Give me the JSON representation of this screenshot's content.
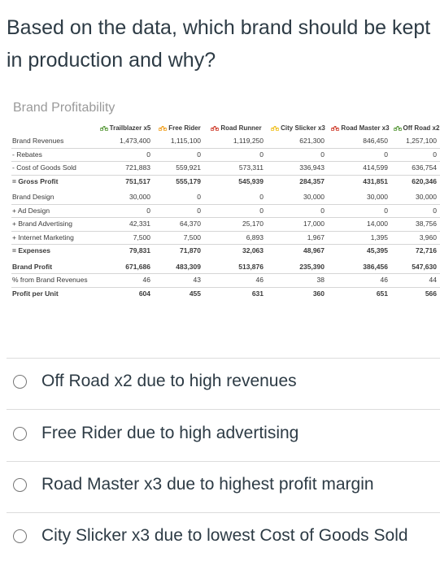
{
  "question": "Based on the data, which brand should be kept in production and why?",
  "table": {
    "title": "Brand Profitability",
    "brands": [
      "Trailblazer x5",
      "Free Rider",
      "Road Runner",
      "City Slicker x3",
      "Road Master x3",
      "Off Road x2"
    ],
    "brand_icon_colors": [
      "#5a9a3c",
      "#f0a020",
      "#d04030",
      "#f0c020",
      "#d04030",
      "#5a9a3c"
    ],
    "rows": [
      {
        "label": "Brand Revenues",
        "values": [
          "1,473,400",
          "1,115,100",
          "1,119,250",
          "621,300",
          "846,450",
          "1,257,100"
        ]
      },
      {
        "label": "- Rebates",
        "values": [
          "0",
          "0",
          "0",
          "0",
          "0",
          "0"
        ]
      },
      {
        "label": "- Cost of Goods Sold",
        "values": [
          "721,883",
          "559,921",
          "573,311",
          "336,943",
          "414,599",
          "636,754"
        ]
      },
      {
        "label": "= Gross Profit",
        "values": [
          "751,517",
          "555,179",
          "545,939",
          "284,357",
          "431,851",
          "620,346"
        ]
      },
      {
        "label": "Brand Design",
        "values": [
          "30,000",
          "0",
          "0",
          "30,000",
          "30,000",
          "30,000"
        ]
      },
      {
        "label": "+ Ad Design",
        "values": [
          "0",
          "0",
          "0",
          "0",
          "0",
          "0"
        ]
      },
      {
        "label": "+ Brand Advertising",
        "values": [
          "42,331",
          "64,370",
          "25,170",
          "17,000",
          "14,000",
          "38,756"
        ]
      },
      {
        "label": "+ Internet Marketing",
        "values": [
          "7,500",
          "7,500",
          "6,893",
          "1,967",
          "1,395",
          "3,960"
        ]
      },
      {
        "label": "= Expenses",
        "values": [
          "79,831",
          "71,870",
          "32,063",
          "48,967",
          "45,395",
          "72,716"
        ]
      },
      {
        "label": "Brand Profit",
        "values": [
          "671,686",
          "483,309",
          "513,876",
          "235,390",
          "386,456",
          "547,630"
        ]
      },
      {
        "label": "% from Brand Revenues",
        "values": [
          "46",
          "43",
          "46",
          "38",
          "46",
          "44"
        ]
      },
      {
        "label": "Profit per Unit",
        "values": [
          "604",
          "455",
          "631",
          "360",
          "651",
          "566"
        ]
      }
    ]
  },
  "options": [
    {
      "label": "Off Road x2 due to high revenues"
    },
    {
      "label": "Free Rider due to high advertising"
    },
    {
      "label": "Road Master x3 due to highest profit margin"
    },
    {
      "label": "City Slicker x3 due to lowest Cost of Goods Sold"
    }
  ]
}
